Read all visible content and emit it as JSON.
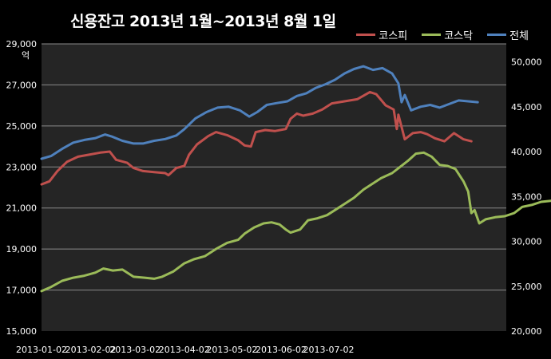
{
  "chart_data": {
    "type": "line",
    "title": "신용잔고 2013년 1월~2013년 8월 1일",
    "y_left_unit": "억",
    "y_left_lim": [
      15000,
      29000
    ],
    "y_left_ticks": [
      "15,000",
      "17,000",
      "19,000",
      "21,000",
      "23,000",
      "25,000",
      "27,000",
      "29,000"
    ],
    "y_right_lim": [
      20000,
      52000
    ],
    "y_right_ticks": [
      "20,000",
      "25,000",
      "30,000",
      "35,000",
      "40,000",
      "45,000",
      "50,000"
    ],
    "x_ticks": [
      "2013-01-02",
      "2013-02-02",
      "2013-03-02",
      "2013-04-02",
      "2013-05-02",
      "2013-06-02",
      "2013-07-02"
    ],
    "grid": "horizontal",
    "legend_position": "top-right",
    "background": "#252525",
    "series": [
      {
        "name": "코스피",
        "axis": "left",
        "color": "#c0504d",
        "points": [
          [
            "2013-01-02",
            22150
          ],
          [
            "2013-01-07",
            22300
          ],
          [
            "2013-01-12",
            22800
          ],
          [
            "2013-01-18",
            23250
          ],
          [
            "2013-01-25",
            23500
          ],
          [
            "2013-02-01",
            23600
          ],
          [
            "2013-02-08",
            23700
          ],
          [
            "2013-02-14",
            23750
          ],
          [
            "2013-02-18",
            23350
          ],
          [
            "2013-02-25",
            23200
          ],
          [
            "2013-03-01",
            22950
          ],
          [
            "2013-03-07",
            22800
          ],
          [
            "2013-03-14",
            22750
          ],
          [
            "2013-03-21",
            22700
          ],
          [
            "2013-03-23",
            22600
          ],
          [
            "2013-03-28",
            22950
          ],
          [
            "2013-04-02",
            23050
          ],
          [
            "2013-04-05",
            23600
          ],
          [
            "2013-04-10",
            24100
          ],
          [
            "2013-04-17",
            24500
          ],
          [
            "2013-04-22",
            24700
          ],
          [
            "2013-04-29",
            24550
          ],
          [
            "2013-05-06",
            24300
          ],
          [
            "2013-05-10",
            24050
          ],
          [
            "2013-05-14",
            24000
          ],
          [
            "2013-05-17",
            24700
          ],
          [
            "2013-05-23",
            24800
          ],
          [
            "2013-05-29",
            24750
          ],
          [
            "2013-06-05",
            24850
          ],
          [
            "2013-06-08",
            25350
          ],
          [
            "2013-06-12",
            25600
          ],
          [
            "2013-06-16",
            25500
          ],
          [
            "2013-06-22",
            25600
          ],
          [
            "2013-06-28",
            25800
          ],
          [
            "2013-07-04",
            26100
          ],
          [
            "2013-07-12",
            26200
          ],
          [
            "2013-07-20",
            26300
          ],
          [
            "2013-07-28",
            26650
          ],
          [
            "2013-08-01",
            26550
          ],
          [
            "2013-08-07",
            26000
          ],
          [
            "2013-08-12",
            25800
          ],
          [
            "2013-08-14",
            24850
          ],
          [
            "2013-08-15",
            25550
          ],
          [
            "2013-08-19",
            24350
          ],
          [
            "2013-08-24",
            24650
          ],
          [
            "2013-08-29",
            24700
          ],
          [
            "2013-09-02",
            24600
          ],
          [
            "2013-09-07",
            24400
          ],
          [
            "2013-09-13",
            24250
          ],
          [
            "2013-09-19",
            24650
          ],
          [
            "2013-09-25",
            24350
          ],
          [
            "2013-09-30",
            24250
          ]
        ]
      },
      {
        "name": "코스닥",
        "axis": "left",
        "color": "#9bbb59",
        "points": [
          [
            "2013-01-02",
            16950
          ],
          [
            "2013-01-08",
            17150
          ],
          [
            "2013-01-15",
            17450
          ],
          [
            "2013-01-22",
            17600
          ],
          [
            "2013-01-29",
            17700
          ],
          [
            "2013-02-05",
            17850
          ],
          [
            "2013-02-10",
            18050
          ],
          [
            "2013-02-16",
            17950
          ],
          [
            "2013-02-22",
            18000
          ],
          [
            "2013-03-01",
            17650
          ],
          [
            "2013-03-08",
            17600
          ],
          [
            "2013-03-14",
            17550
          ],
          [
            "2013-03-19",
            17650
          ],
          [
            "2013-03-26",
            17900
          ],
          [
            "2013-04-02",
            18300
          ],
          [
            "2013-04-08",
            18500
          ],
          [
            "2013-04-15",
            18650
          ],
          [
            "2013-04-22",
            19000
          ],
          [
            "2013-04-29",
            19300
          ],
          [
            "2013-05-06",
            19450
          ],
          [
            "2013-05-10",
            19750
          ],
          [
            "2013-05-16",
            20050
          ],
          [
            "2013-05-22",
            20250
          ],
          [
            "2013-05-27",
            20300
          ],
          [
            "2013-06-01",
            20200
          ],
          [
            "2013-06-05",
            19950
          ],
          [
            "2013-06-08",
            19800
          ],
          [
            "2013-06-14",
            19950
          ],
          [
            "2013-06-19",
            20400
          ],
          [
            "2013-06-25",
            20500
          ],
          [
            "2013-07-01",
            20650
          ],
          [
            "2013-07-06",
            20900
          ],
          [
            "2013-07-12",
            21200
          ],
          [
            "2013-07-18",
            21500
          ],
          [
            "2013-07-24",
            21900
          ],
          [
            "2013-07-30",
            22200
          ],
          [
            "2013-08-04",
            22450
          ],
          [
            "2013-08-11",
            22700
          ],
          [
            "2013-08-16",
            23000
          ],
          [
            "2013-08-21",
            23300
          ],
          [
            "2013-08-26",
            23650
          ],
          [
            "2013-08-31",
            23700
          ],
          [
            "2013-09-05",
            23500
          ],
          [
            "2013-09-10",
            23100
          ],
          [
            "2013-09-15",
            23050
          ],
          [
            "2013-09-20",
            22900
          ],
          [
            "2013-09-25",
            22300
          ],
          [
            "2013-09-28",
            21800
          ],
          [
            "2013-09-30",
            20750
          ],
          [
            "2013-10-02",
            20900
          ],
          [
            "2013-10-05",
            20250
          ],
          [
            "2013-10-09",
            20450
          ],
          [
            "2013-10-15",
            20550
          ],
          [
            "2013-10-21",
            20600
          ],
          [
            "2013-10-27",
            20750
          ],
          [
            "2013-11-01",
            21050
          ],
          [
            "2013-11-07",
            21150
          ],
          [
            "2013-11-13",
            21300
          ],
          [
            "2013-11-19",
            21350
          ]
        ]
      },
      {
        "name": "전체",
        "axis": "right",
        "color": "#4f81bd",
        "points": [
          [
            "2013-01-02",
            39200
          ],
          [
            "2013-01-08",
            39500
          ],
          [
            "2013-01-15",
            40300
          ],
          [
            "2013-01-22",
            41000
          ],
          [
            "2013-01-29",
            41300
          ],
          [
            "2013-02-05",
            41500
          ],
          [
            "2013-02-11",
            41900
          ],
          [
            "2013-02-15",
            41700
          ],
          [
            "2013-02-22",
            41200
          ],
          [
            "2013-03-01",
            40900
          ],
          [
            "2013-03-07",
            40900
          ],
          [
            "2013-03-14",
            41200
          ],
          [
            "2013-03-21",
            41400
          ],
          [
            "2013-03-28",
            41800
          ],
          [
            "2013-04-02",
            42500
          ],
          [
            "2013-04-09",
            43700
          ],
          [
            "2013-04-16",
            44400
          ],
          [
            "2013-04-23",
            44900
          ],
          [
            "2013-04-30",
            45000
          ],
          [
            "2013-05-07",
            44600
          ],
          [
            "2013-05-13",
            43900
          ],
          [
            "2013-05-18",
            44400
          ],
          [
            "2013-05-24",
            45200
          ],
          [
            "2013-05-30",
            45400
          ],
          [
            "2013-06-06",
            45600
          ],
          [
            "2013-06-12",
            46200
          ],
          [
            "2013-06-18",
            46500
          ],
          [
            "2013-06-24",
            47100
          ],
          [
            "2013-06-30",
            47500
          ],
          [
            "2013-07-06",
            48000
          ],
          [
            "2013-07-12",
            48700
          ],
          [
            "2013-07-18",
            49200
          ],
          [
            "2013-07-24",
            49500
          ],
          [
            "2013-07-30",
            49100
          ],
          [
            "2013-08-05",
            49300
          ],
          [
            "2013-08-11",
            48700
          ],
          [
            "2013-08-15",
            47600
          ],
          [
            "2013-08-17",
            45500
          ],
          [
            "2013-08-19",
            46300
          ],
          [
            "2013-08-23",
            44600
          ],
          [
            "2013-08-29",
            45000
          ],
          [
            "2013-09-04",
            45200
          ],
          [
            "2013-09-10",
            44900
          ],
          [
            "2013-09-16",
            45300
          ],
          [
            "2013-09-22",
            45700
          ],
          [
            "2013-09-28",
            45600
          ],
          [
            "2013-10-04",
            45500
          ]
        ]
      }
    ]
  }
}
